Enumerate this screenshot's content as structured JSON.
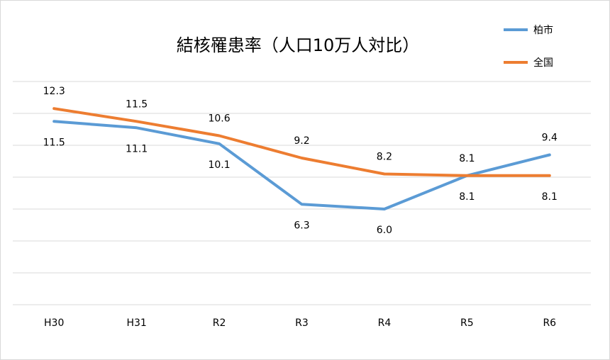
{
  "chart_data": {
    "type": "line",
    "title": "結核罹患率（人口10万人対比）",
    "categories": [
      "H30",
      "H31",
      "R2",
      "R3",
      "R4",
      "R5",
      "R6"
    ],
    "series": [
      {
        "name": "柏市",
        "color": "#5b9bd5",
        "values": [
          11.5,
          11.1,
          10.1,
          6.3,
          6.0,
          8.1,
          9.4
        ]
      },
      {
        "name": "全国",
        "color": "#ed7d31",
        "values": [
          12.3,
          11.5,
          10.6,
          9.2,
          8.2,
          8.1,
          8.1
        ]
      }
    ],
    "xlabel": "",
    "ylabel": "",
    "ylim": [
      0,
      14
    ],
    "grid": true,
    "legend": "top-right"
  }
}
